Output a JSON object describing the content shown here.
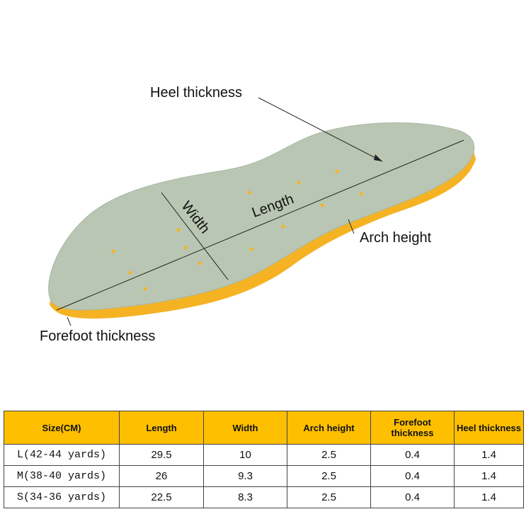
{
  "labels": {
    "heel_thickness": "Heel thickness",
    "length": "Length",
    "width": "Width",
    "arch_height": "Arch height",
    "forefoot_thickness": "Forefoot thickness"
  },
  "colors": {
    "insole_top": "#b9c6b3",
    "insole_side": "#f5b324",
    "header": "#fdbf00"
  },
  "table": {
    "headers": [
      "Size(CM)",
      "Length",
      "Width",
      "Arch height",
      "Forefoot thickness",
      "Heel thickness"
    ],
    "rows": [
      [
        "L(42-44 yards)",
        "29.5",
        "10",
        "2.5",
        "0.4",
        "1.4"
      ],
      [
        "M(38-40 yards)",
        "26",
        "9.3",
        "2.5",
        "0.4",
        "1.4"
      ],
      [
        "S(34-36 yards)",
        "22.5",
        "8.3",
        "2.5",
        "0.4",
        "1.4"
      ]
    ]
  }
}
